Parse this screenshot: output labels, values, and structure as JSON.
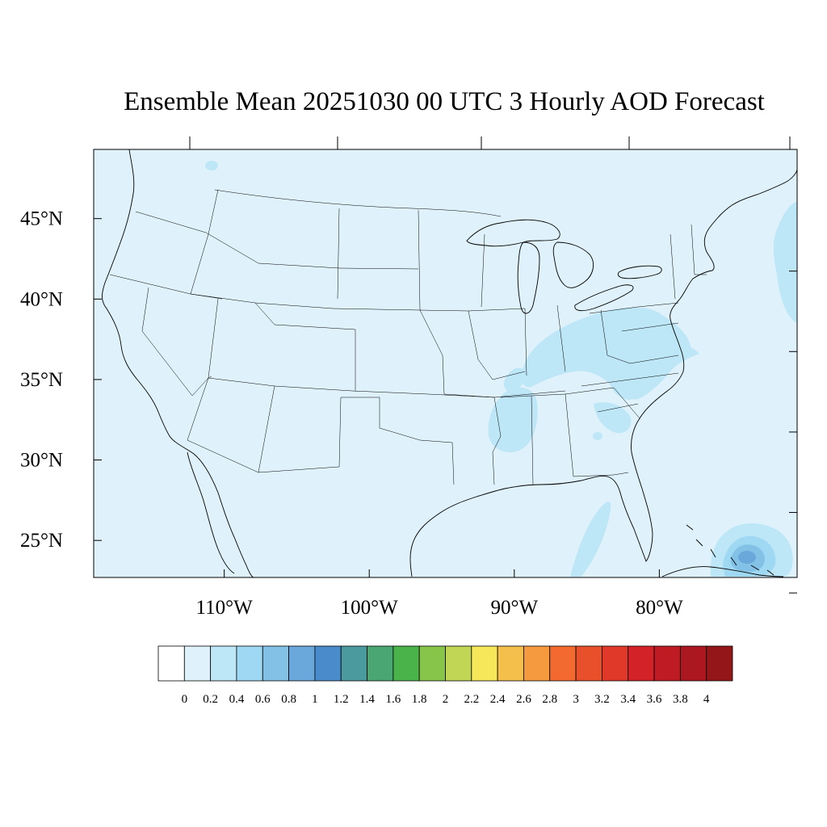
{
  "title": "Ensemble Mean 20251030 00 UTC 3 Hourly AOD Forecast",
  "map": {
    "lat_labels": [
      "45°N",
      "40°N",
      "35°N",
      "30°N",
      "25°N"
    ],
    "lon_labels": [
      "110°W",
      "100°W",
      "90°W",
      "80°W"
    ],
    "lat_values": [
      45,
      40,
      35,
      30,
      25
    ],
    "lon_values": [
      -110,
      -100,
      -90,
      -80
    ],
    "lat_range": [
      22.7,
      49.3
    ],
    "lon_range": [
      -119,
      -70.5
    ],
    "ocean_fill": "#dff2fb",
    "land_fill": "#dff2fb",
    "line_color": "#000000"
  },
  "colorbar": {
    "tick_labels": [
      "0",
      "0.2",
      "0.4",
      "0.6",
      "0.8",
      "1",
      "1.2",
      "1.4",
      "1.6",
      "1.8",
      "2",
      "2.2",
      "2.4",
      "2.6",
      "2.8",
      "3",
      "3.2",
      "3.4",
      "3.6",
      "3.8",
      "4"
    ],
    "colors": [
      "#ffffff",
      "#dff2fb",
      "#bde6f7",
      "#9fd8f2",
      "#84c1e6",
      "#6aa8dc",
      "#4a8bcb",
      "#4a9a9e",
      "#4aa672",
      "#4ab44a",
      "#86c44a",
      "#c2d655",
      "#f6e65a",
      "#f5bf4b",
      "#f59a3e",
      "#f26a30",
      "#e8502c",
      "#e0392a",
      "#d32228",
      "#bf1b24",
      "#ab1820",
      "#951619"
    ]
  },
  "chart_data": {
    "type": "heatmap",
    "title": "Ensemble Mean 20251030 00 UTC 3 Hourly AOD Forecast",
    "variable": "AOD",
    "levels": [
      0,
      0.2,
      0.4,
      0.6,
      0.8,
      1,
      1.2,
      1.4,
      1.6,
      1.8,
      2,
      2.2,
      2.4,
      2.6,
      2.8,
      3,
      3.2,
      3.4,
      3.6,
      3.8,
      4
    ],
    "regions": [
      {
        "area": "Ohio Valley / Kentucky / Tennessee",
        "range": [
          0.2,
          0.4
        ]
      },
      {
        "area": "Mississippi / Alabama",
        "range": [
          0.2,
          0.4
        ]
      },
      {
        "area": "Virginia / North Carolina",
        "range": [
          0.2,
          0.4
        ]
      },
      {
        "area": "Atlantic off New England",
        "range": [
          0.2,
          0.4
        ]
      },
      {
        "area": "Gulf of Mexico east of Louisiana",
        "range": [
          0.2,
          0.4
        ]
      },
      {
        "area": "Bahamas",
        "range": [
          0.6,
          1.0
        ]
      }
    ],
    "background": {
      "range": [
        0,
        0.2
      ]
    },
    "xlabel": "",
    "ylabel": ""
  }
}
